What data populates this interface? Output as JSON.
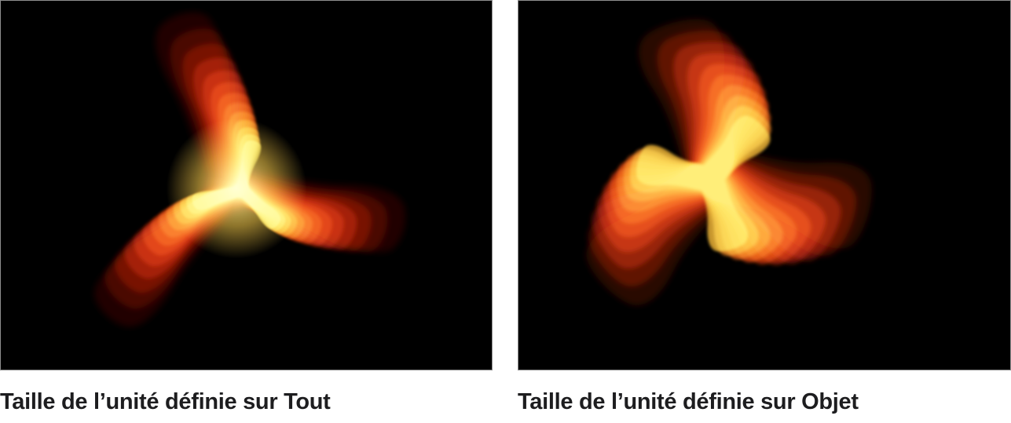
{
  "figures": [
    {
      "id": "unit-size-all",
      "caption": "Taille de l’unité définie sur Tout"
    },
    {
      "id": "unit-size-object",
      "caption": "Taille de l’unité définie sur Objet"
    }
  ],
  "style": {
    "page_bg": "#ffffff",
    "panel_bg": "#000000",
    "panel_border": "#8e8e8e",
    "caption_color": "#1d1d1f",
    "glow_core": "#fff3a0",
    "glow_mid": "#ffd24e"
  },
  "art": {
    "palette_all": [
      "#2e0601",
      "#430a03",
      "#5a0f05",
      "#741607",
      "#8f1d08",
      "#ab280a",
      "#c4350d",
      "#dd4512",
      "#ee5b18",
      "#f9751f",
      "#ff9328",
      "#ffb637",
      "#ffdb4a"
    ],
    "palette_object": [
      "#360803",
      "#541006",
      "#731708",
      "#941f09",
      "#b62b0c",
      "#d63a10",
      "#ef4f16",
      "#fb6c1e",
      "#ff9229",
      "#ffc13b"
    ]
  }
}
